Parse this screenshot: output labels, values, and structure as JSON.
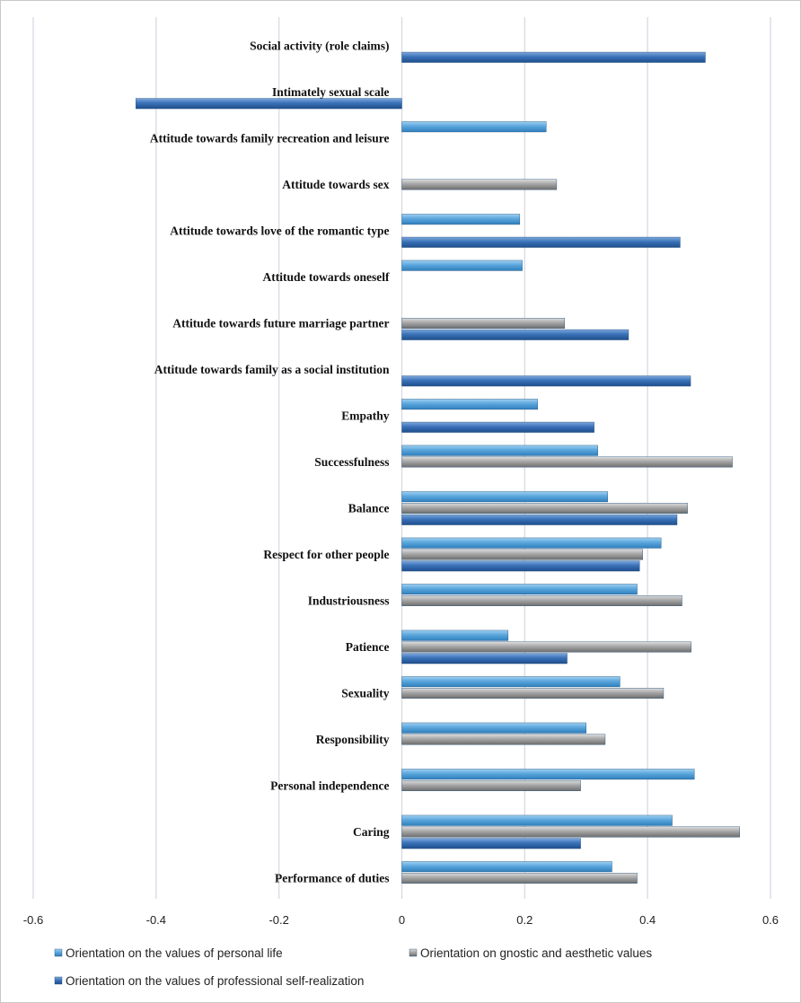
{
  "chart_data": {
    "type": "bar",
    "orientation": "horizontal",
    "title": "",
    "xlim": [
      -0.6,
      0.6
    ],
    "x_ticks": [
      "-0.6",
      "-0.4",
      "-0.2",
      "0",
      "0.2",
      "0.4",
      "0.6"
    ],
    "grid": "vertical",
    "legend_position": "bottom",
    "categories": [
      "Social activity (role claims)",
      "Intimately sexual scale",
      "Attitude towards family recreation and leisure",
      "Attitude towards sex",
      "Attitude towards love of the romantic type",
      "Attitude towards oneself",
      "Attitude towards future marriage partner",
      "Attitude towards family as a social institution",
      "Empathy",
      "Successfulness",
      "Balance",
      "Respect for other people",
      "Industriousness",
      "Patience",
      "Sexuality",
      "Responsibility",
      "Personal independence",
      "Caring",
      "Performance of duties"
    ],
    "series": [
      {
        "name": "Orientation on the values of personal life",
        "color": "#5aa6dc",
        "values": [
          null,
          null,
          0.235,
          null,
          0.192,
          0.196,
          null,
          null,
          0.221,
          0.319,
          0.335,
          0.422,
          0.383,
          0.173,
          0.355,
          0.3,
          0.476,
          0.44,
          0.342
        ]
      },
      {
        "name": "Orientation on gnostic and aesthetic values",
        "color": "#a6a6a6",
        "values": [
          null,
          null,
          null,
          0.252,
          null,
          null,
          0.265,
          null,
          null,
          0.538,
          0.465,
          0.392,
          0.456,
          0.471,
          0.426,
          0.331,
          0.291,
          0.55,
          0.383
        ]
      },
      {
        "name": "Orientation on the values of professional self-realization",
        "color": "#3a72b8",
        "values": [
          0.494,
          -0.433,
          null,
          null,
          0.453,
          null,
          0.369,
          0.47,
          0.313,
          null,
          0.448,
          0.387,
          null,
          0.269,
          null,
          null,
          null,
          0.291,
          null
        ]
      }
    ]
  }
}
